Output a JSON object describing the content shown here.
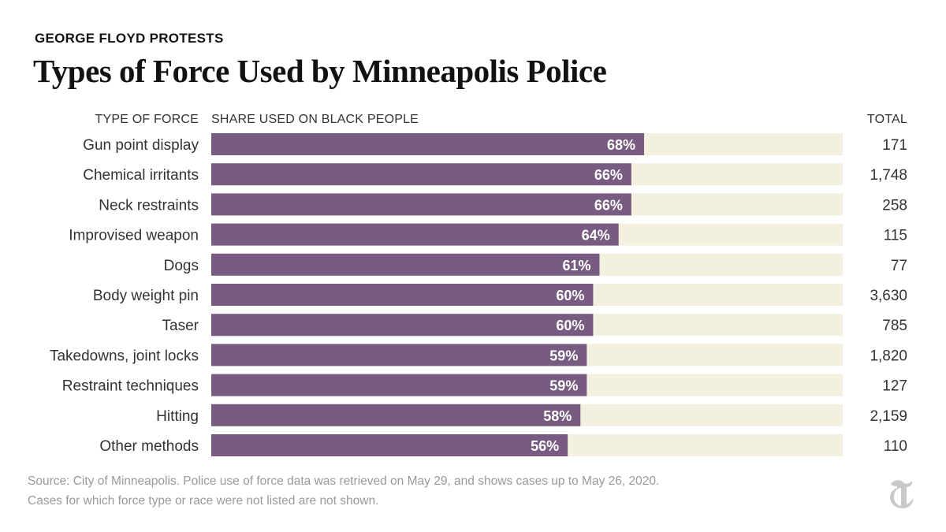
{
  "header": {
    "kicker": "GEORGE FLOYD PROTESTS",
    "title": "Types of Force Used by Minneapolis Police"
  },
  "columns": {
    "type": "TYPE OF FORCE",
    "share": "SHARE USED ON BLACK PEOPLE",
    "total": "TOTAL"
  },
  "chart_data": {
    "type": "bar",
    "orientation": "horizontal",
    "title": "Types of Force Used by Minneapolis Police",
    "xlabel": "SHARE USED ON BLACK PEOPLE",
    "ylabel": "TYPE OF FORCE",
    "xlim": [
      0,
      100
    ],
    "grid": false,
    "categories": [
      "Gun point display",
      "Chemical irritants",
      "Neck restraints",
      "Improvised weapon",
      "Dogs",
      "Body weight pin",
      "Taser",
      "Takedowns, joint locks",
      "Restraint techniques",
      "Hitting",
      "Other methods"
    ],
    "values": [
      68,
      66,
      66,
      64,
      61,
      60,
      60,
      59,
      59,
      58,
      56
    ],
    "value_labels": [
      "68%",
      "66%",
      "66%",
      "64%",
      "61%",
      "60%",
      "60%",
      "59%",
      "59%",
      "58%",
      "56%"
    ],
    "totals": [
      "171",
      "1,748",
      "258",
      "115",
      "77",
      "3,630",
      "785",
      "1,820",
      "127",
      "2,159",
      "110"
    ]
  },
  "colors": {
    "bar": "#775b80",
    "track": "#f3f0df"
  },
  "footer": {
    "source_line1": "Source: City of Minneapolis. Police use of force data was retrieved on May 29, and shows cases up to May 26, 2020.",
    "source_line2": "Cases for which force type or race were not listed are not shown.",
    "logo_icon": "nyt-logo-icon"
  }
}
